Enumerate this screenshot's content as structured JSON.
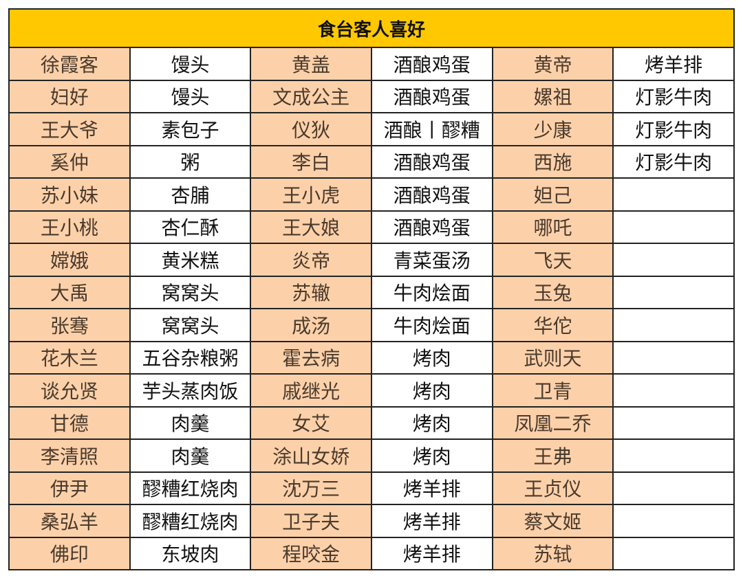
{
  "title": "食台客人喜好",
  "colors": {
    "header": "#FFC800",
    "name_cell": "#FCD1AA",
    "food_cell": "#FFFFFF"
  },
  "rows": [
    [
      {
        "name": "徐霞客",
        "food": "馒头"
      },
      {
        "name": "黄盖",
        "food": "酒酿鸡蛋"
      },
      {
        "name": "黄帝",
        "food": "烤羊排"
      }
    ],
    [
      {
        "name": "妇好",
        "food": "馒头"
      },
      {
        "name": "文成公主",
        "food": "酒酿鸡蛋"
      },
      {
        "name": "嫘祖",
        "food": "灯影牛肉"
      }
    ],
    [
      {
        "name": "王大爷",
        "food": "素包子"
      },
      {
        "name": "仪狄",
        "food": "酒酿丨醪糟"
      },
      {
        "name": "少康",
        "food": "灯影牛肉"
      }
    ],
    [
      {
        "name": "奚仲",
        "food": "粥"
      },
      {
        "name": "李白",
        "food": "酒酿鸡蛋"
      },
      {
        "name": "西施",
        "food": "灯影牛肉"
      }
    ],
    [
      {
        "name": "苏小妹",
        "food": "杏脯"
      },
      {
        "name": "王小虎",
        "food": "酒酿鸡蛋"
      },
      {
        "name": "妲己",
        "food": ""
      }
    ],
    [
      {
        "name": "王小桃",
        "food": "杏仁酥"
      },
      {
        "name": "王大娘",
        "food": "酒酿鸡蛋"
      },
      {
        "name": "哪吒",
        "food": ""
      }
    ],
    [
      {
        "name": "嫦娥",
        "food": "黄米糕"
      },
      {
        "name": "炎帝",
        "food": "青菜蛋汤"
      },
      {
        "name": "飞天",
        "food": ""
      }
    ],
    [
      {
        "name": "大禹",
        "food": "窝窝头"
      },
      {
        "name": "苏辙",
        "food": "牛肉烩面"
      },
      {
        "name": "玉兔",
        "food": ""
      }
    ],
    [
      {
        "name": "张骞",
        "food": "窝窝头"
      },
      {
        "name": "成汤",
        "food": "牛肉烩面"
      },
      {
        "name": "华佗",
        "food": ""
      }
    ],
    [
      {
        "name": "花木兰",
        "food": "五谷杂粮粥"
      },
      {
        "name": "霍去病",
        "food": "烤肉"
      },
      {
        "name": "武则天",
        "food": ""
      }
    ],
    [
      {
        "name": "谈允贤",
        "food": "芋头蒸肉饭"
      },
      {
        "name": "戚继光",
        "food": "烤肉"
      },
      {
        "name": "卫青",
        "food": ""
      }
    ],
    [
      {
        "name": "甘德",
        "food": "肉羹"
      },
      {
        "name": "女艾",
        "food": "烤肉"
      },
      {
        "name": "凤凰二乔",
        "food": ""
      }
    ],
    [
      {
        "name": "李清照",
        "food": "肉羹"
      },
      {
        "name": "涂山女娇",
        "food": "烤肉"
      },
      {
        "name": "王弗",
        "food": ""
      }
    ],
    [
      {
        "name": "伊尹",
        "food": "醪糟红烧肉"
      },
      {
        "name": "沈万三",
        "food": "烤羊排"
      },
      {
        "name": "王贞仪",
        "food": ""
      }
    ],
    [
      {
        "name": "桑弘羊",
        "food": "醪糟红烧肉"
      },
      {
        "name": "卫子夫",
        "food": "烤羊排"
      },
      {
        "name": "蔡文姬",
        "food": ""
      }
    ],
    [
      {
        "name": "佛印",
        "food": "东坡肉"
      },
      {
        "name": "程咬金",
        "food": "烤羊排"
      },
      {
        "name": "苏轼",
        "food": ""
      }
    ]
  ]
}
